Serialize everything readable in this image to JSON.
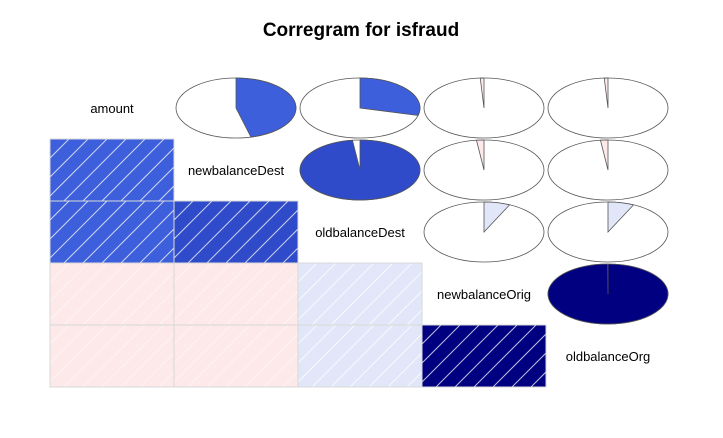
{
  "chart_data": {
    "type": "corrgram",
    "title": "Corregram for isfraud",
    "variables": [
      "amount",
      "newbalanceDest",
      "oldbalanceDest",
      "newbalanceOrig",
      "oldbalanceOrg"
    ],
    "lower_panel": "shade",
    "upper_panel": "pie",
    "correlations": [
      [
        1.0,
        0.46,
        0.29,
        -0.01,
        -0.01
      ],
      [
        0.46,
        1.0,
        0.98,
        -0.02,
        -0.02
      ],
      [
        0.29,
        0.98,
        1.0,
        0.07,
        0.07
      ],
      [
        -0.01,
        -0.02,
        0.07,
        1.0,
        1.0
      ],
      [
        -0.01,
        -0.02,
        0.07,
        1.0,
        1.0
      ]
    ],
    "colors": {
      "lower_cells": [
        [
          null,
          null,
          null,
          null,
          null
        ],
        [
          "#3e5fdb",
          null,
          null,
          null,
          null
        ],
        [
          "#3e5fdb",
          "#2f4bc9",
          null,
          null,
          null
        ],
        [
          "#fde9ea",
          "#fde9ea",
          "#e1e7f8",
          null,
          null
        ],
        [
          "#fde9ea",
          "#fde9ea",
          "#e1e7f8",
          "#000080",
          null
        ]
      ],
      "upper_cells": [
        [
          null,
          "#3e5fdb",
          "#3e5fdb",
          "#fde9ea",
          "#fde9ea"
        ],
        [
          null,
          null,
          "#2f4bc9",
          "#fde9ea",
          "#fde9ea"
        ],
        [
          null,
          null,
          null,
          "#e1e7f8",
          "#e1e7f8"
        ],
        [
          null,
          null,
          null,
          null,
          "#000080"
        ],
        [
          null,
          null,
          null,
          null,
          null
        ]
      ]
    }
  }
}
